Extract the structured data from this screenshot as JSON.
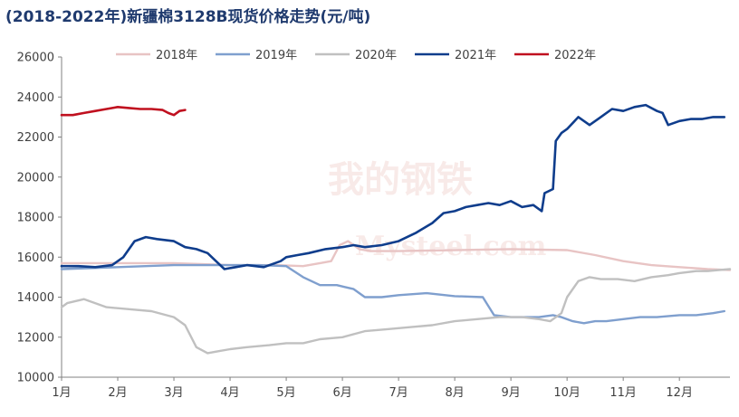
{
  "title": "(2018-2022年)新疆棉3128B现货价格走势(元/吨)",
  "watermark": "我的钢铁 Mysteel.com",
  "chart_data": {
    "type": "line",
    "title": "(2018-2022年)新疆棉3128B现货价格走势(元/吨)",
    "xlabel": "",
    "ylabel": "",
    "x_unit": "month-of-year",
    "xlim": [
      1,
      12.9
    ],
    "ylim": [
      10000,
      26000
    ],
    "y_ticks": [
      10000,
      12000,
      14000,
      16000,
      18000,
      20000,
      22000,
      24000,
      26000
    ],
    "x_ticks": [
      1,
      2,
      3,
      4,
      5,
      6,
      7,
      8,
      9,
      10,
      11,
      12
    ],
    "x_tick_labels": [
      "1月",
      "2月",
      "3月",
      "4月",
      "5月",
      "6月",
      "7月",
      "8月",
      "9月",
      "10月",
      "11月",
      "12月"
    ],
    "grid": false,
    "legend_position": "top",
    "series": [
      {
        "name": "2018年",
        "color": "#e8c4c4",
        "x": [
          1.0,
          2.0,
          3.0,
          4.0,
          4.8,
          5.3,
          5.6,
          5.8,
          5.95,
          6.1,
          6.3,
          6.5,
          7.0,
          8.0,
          9.0,
          10.0,
          10.5,
          11.0,
          11.5,
          12.0,
          12.5,
          12.9
        ],
        "y": [
          15700,
          15700,
          15700,
          15600,
          15600,
          15550,
          15700,
          15800,
          16600,
          16800,
          16400,
          16300,
          16300,
          16350,
          16400,
          16350,
          16100,
          15800,
          15600,
          15500,
          15400,
          15350
        ]
      },
      {
        "name": "2019年",
        "color": "#7f9fce",
        "x": [
          1.0,
          2.0,
          3.0,
          4.0,
          4.5,
          5.0,
          5.3,
          5.6,
          5.9,
          6.2,
          6.4,
          6.7,
          7.0,
          7.5,
          8.0,
          8.5,
          8.7,
          9.0,
          9.5,
          9.75,
          9.9,
          10.1,
          10.3,
          10.5,
          10.7,
          11.0,
          11.3,
          11.6,
          12.0,
          12.3,
          12.6,
          12.8
        ],
        "y": [
          15400,
          15500,
          15600,
          15600,
          15600,
          15550,
          15000,
          14600,
          14600,
          14400,
          14000,
          14000,
          14100,
          14200,
          14050,
          14000,
          13100,
          13000,
          13000,
          13100,
          13000,
          12800,
          12700,
          12800,
          12800,
          12900,
          13000,
          13000,
          13100,
          13100,
          13200,
          13300
        ]
      },
      {
        "name": "2020年",
        "color": "#c0c0c0",
        "x": [
          1.0,
          1.1,
          1.4,
          1.8,
          2.2,
          2.6,
          3.0,
          3.2,
          3.4,
          3.6,
          3.8,
          4.0,
          4.3,
          4.7,
          5.0,
          5.3,
          5.6,
          6.0,
          6.4,
          6.8,
          7.2,
          7.6,
          8.0,
          8.4,
          8.8,
          9.2,
          9.5,
          9.7,
          9.9,
          10.0,
          10.2,
          10.4,
          10.6,
          10.9,
          11.2,
          11.5,
          11.8,
          12.0,
          12.3,
          12.5,
          12.7,
          12.9
        ],
        "y": [
          13500,
          13700,
          13900,
          13500,
          13400,
          13300,
          13000,
          12600,
          11500,
          11200,
          11300,
          11400,
          11500,
          11600,
          11700,
          11700,
          11900,
          12000,
          12300,
          12400,
          12500,
          12600,
          12800,
          12900,
          13000,
          13000,
          12900,
          12800,
          13200,
          14000,
          14800,
          15000,
          14900,
          14900,
          14800,
          15000,
          15100,
          15200,
          15300,
          15300,
          15350,
          15400
        ]
      },
      {
        "name": "2021年",
        "color": "#0f3d8c",
        "x": [
          1.0,
          1.3,
          1.6,
          1.9,
          2.1,
          2.3,
          2.5,
          2.7,
          3.0,
          3.2,
          3.4,
          3.6,
          3.75,
          3.9,
          4.1,
          4.3,
          4.6,
          4.9,
          5.0,
          5.2,
          5.4,
          5.7,
          6.0,
          6.2,
          6.4,
          6.7,
          7.0,
          7.3,
          7.6,
          7.8,
          8.0,
          8.2,
          8.4,
          8.6,
          8.8,
          9.0,
          9.2,
          9.4,
          9.55,
          9.6,
          9.75,
          9.8,
          9.9,
          10.0,
          10.2,
          10.4,
          10.6,
          10.8,
          11.0,
          11.2,
          11.4,
          11.6,
          11.7,
          11.8,
          12.0,
          12.2,
          12.4,
          12.6,
          12.8
        ],
        "y": [
          15550,
          15550,
          15500,
          15600,
          16000,
          16800,
          17000,
          16900,
          16800,
          16500,
          16400,
          16200,
          15800,
          15400,
          15500,
          15600,
          15500,
          15800,
          16000,
          16100,
          16200,
          16400,
          16500,
          16600,
          16500,
          16600,
          16800,
          17200,
          17700,
          18200,
          18300,
          18500,
          18600,
          18700,
          18600,
          18800,
          18500,
          18600,
          18300,
          19200,
          19400,
          21800,
          22200,
          22400,
          23000,
          22600,
          23000,
          23400,
          23300,
          23500,
          23600,
          23300,
          23200,
          22600,
          22800,
          22900,
          22900,
          23000,
          23000
        ]
      },
      {
        "name": "2022年",
        "color": "#c0101f",
        "x": [
          1.0,
          1.2,
          1.4,
          1.6,
          1.8,
          2.0,
          2.2,
          2.4,
          2.6,
          2.8,
          2.9,
          3.0,
          3.1,
          3.2
        ],
        "y": [
          23100,
          23100,
          23200,
          23300,
          23400,
          23500,
          23450,
          23400,
          23400,
          23350,
          23200,
          23100,
          23300,
          23350
        ]
      }
    ]
  }
}
